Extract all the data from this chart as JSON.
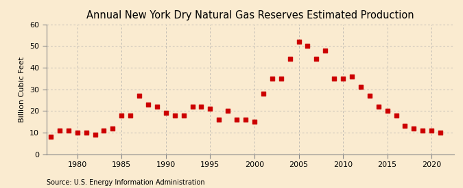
{
  "title": "Annual New York Dry Natural Gas Reserves Estimated Production",
  "ylabel": "Billion Cubic Feet",
  "source": "Source: U.S. Energy Information Administration",
  "years": [
    1977,
    1978,
    1979,
    1980,
    1981,
    1982,
    1983,
    1984,
    1985,
    1986,
    1987,
    1988,
    1989,
    1990,
    1991,
    1992,
    1993,
    1994,
    1995,
    1996,
    1997,
    1998,
    1999,
    2000,
    2001,
    2002,
    2003,
    2004,
    2005,
    2006,
    2007,
    2008,
    2009,
    2010,
    2011,
    2012,
    2013,
    2014,
    2015,
    2016,
    2017,
    2018,
    2019,
    2020,
    2021
  ],
  "values": [
    8,
    11,
    11,
    10,
    10,
    9,
    11,
    12,
    18,
    18,
    27,
    23,
    22,
    19,
    18,
    18,
    22,
    22,
    21,
    16,
    20,
    16,
    16,
    15,
    28,
    35,
    35,
    44,
    52,
    50,
    44,
    48,
    35,
    35,
    36,
    31,
    27,
    22,
    20,
    18,
    13,
    12,
    11,
    11,
    10
  ],
  "marker_color": "#cc0000",
  "marker_size": 16,
  "bg_color": "#faebd0",
  "grid_color": "#aaaaaa",
  "xlim": [
    1976.5,
    2022.5
  ],
  "ylim": [
    0,
    60
  ],
  "yticks": [
    0,
    10,
    20,
    30,
    40,
    50,
    60
  ],
  "xticks": [
    1980,
    1985,
    1990,
    1995,
    2000,
    2005,
    2010,
    2015,
    2020
  ],
  "title_fontsize": 10.5,
  "label_fontsize": 8,
  "tick_fontsize": 8,
  "source_fontsize": 7
}
